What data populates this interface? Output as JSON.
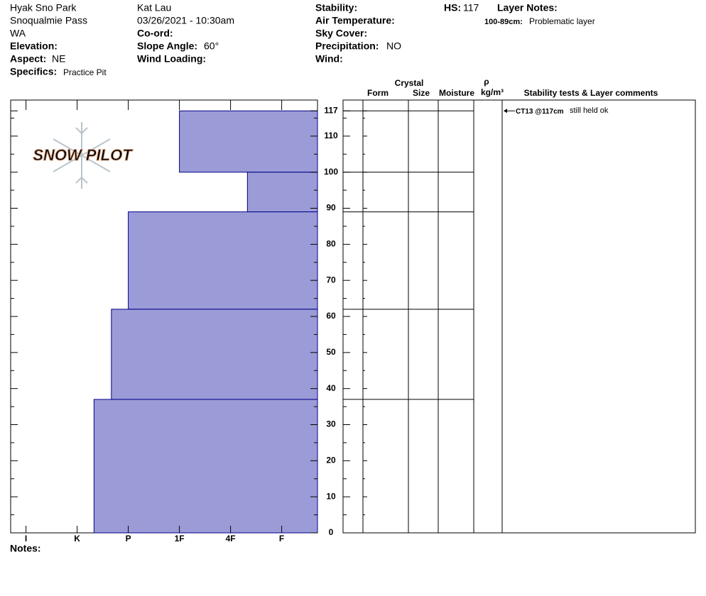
{
  "header": {
    "location": "Hyak Sno Park",
    "area": "Snoqualmie Pass",
    "state": "WA",
    "elevation_label": "Elevation:",
    "aspect_label": "Aspect:",
    "aspect": "NE",
    "specifics_label": "Specifics:",
    "specifics": "Practice Pit",
    "observer": "Kat Lau",
    "datetime": "03/26/2021 - 10:30am",
    "coord_label": "Co-ord:",
    "slope_label": "Slope Angle:",
    "slope": "60°",
    "wind_loading_label": "Wind Loading:",
    "stability_label": "Stability:",
    "air_temp_label": "Air Temperature:",
    "sky_label": "Sky Cover:",
    "precip_label": "Precipitation:",
    "precip": "NO",
    "wind_label": "Wind:",
    "hs_label": "HS:",
    "hs": 117,
    "layer_notes_label": "Layer Notes:",
    "layer_note_range": "100-89cm:",
    "layer_note": "Problematic layer"
  },
  "logo": "SNOW PILOT",
  "notes_label": "Notes:",
  "chart_data": {
    "type": "snow-profile",
    "color": "#9b9bd7",
    "edge_color": "#00008b",
    "ylim": [
      0,
      120
    ],
    "yticks": [
      0,
      10,
      20,
      30,
      40,
      50,
      60,
      70,
      80,
      90,
      100,
      110,
      117
    ],
    "minor_yticks": [
      5,
      15,
      25,
      35,
      45,
      55,
      65,
      75,
      85,
      95,
      105,
      115
    ],
    "xlim": [
      6.3,
      0.3
    ],
    "xticks": [
      {
        "value": 6,
        "label": "I"
      },
      {
        "value": 5,
        "label": "K"
      },
      {
        "value": 4,
        "label": "P"
      },
      {
        "value": 3,
        "label": "1F"
      },
      {
        "value": 2,
        "label": "4F"
      },
      {
        "value": 1,
        "label": "F"
      }
    ],
    "layers": [
      {
        "top": 117,
        "bottom": 100,
        "hardness": 3
      },
      {
        "top": 100,
        "bottom": 89,
        "hardness": 1.67
      },
      {
        "top": 89,
        "bottom": 62,
        "hardness": 4
      },
      {
        "top": 62,
        "bottom": 37,
        "hardness": 4.33
      },
      {
        "top": 37,
        "bottom": 0,
        "hardness": 4.67
      }
    ],
    "columns": {
      "crystal": "Crystal",
      "form": "Form",
      "size": "Size",
      "moisture": "Moisture",
      "density_symbol": "ρ",
      "density_unit": "kg/m³",
      "comments": "Stability tests & Layer comments"
    },
    "tests": [
      {
        "height": 117,
        "test": "CT13 @117cm",
        "comment": "still held ok"
      }
    ]
  }
}
